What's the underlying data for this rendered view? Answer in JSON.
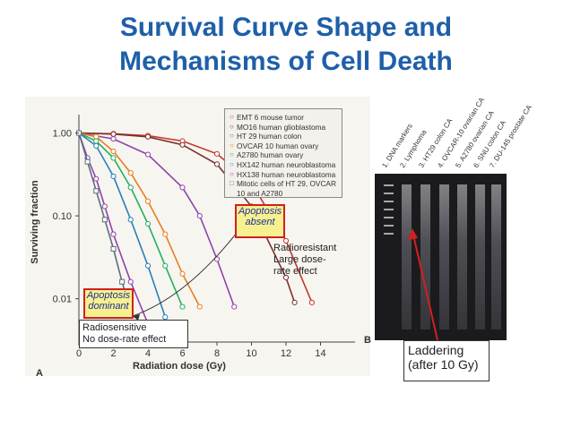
{
  "title_line1": "Survival Curve Shape and",
  "title_line2": "Mechanisms of Cell Death",
  "chart_data": {
    "type": "line",
    "xlabel": "Radiation dose (Gy)",
    "ylabel": "Surviving fraction",
    "xlim": [
      0,
      16
    ],
    "ylim": [
      0.003,
      1.3
    ],
    "yscale": "log",
    "x_ticks": [
      "0",
      "2",
      "4",
      "6",
      "8",
      "10",
      "12",
      "14"
    ],
    "x_tick_values": [
      0,
      2,
      4,
      6,
      8,
      10,
      12,
      14
    ],
    "y_ticks": [
      "1.00",
      "0.10",
      "0.01"
    ],
    "y_tick_values": [
      1,
      0.1,
      0.01
    ],
    "series": [
      {
        "name": "EMT 6 mouse tumor",
        "color": "#c0392b",
        "x": [
          0,
          2,
          4,
          6,
          8,
          10,
          12,
          13.5
        ],
        "y": [
          1,
          0.98,
          0.93,
          0.8,
          0.56,
          0.25,
          0.05,
          0.009
        ]
      },
      {
        "name": "MO16 human glioblastoma",
        "color": "#7a2f2f",
        "x": [
          0,
          2,
          4,
          6,
          8,
          10,
          12,
          12.5
        ],
        "y": [
          1,
          0.97,
          0.9,
          0.72,
          0.42,
          0.13,
          0.018,
          0.009
        ]
      },
      {
        "name": "HT 29 human colon",
        "color": "#8e44ad",
        "x": [
          0,
          2,
          4,
          6,
          7,
          8,
          9
        ],
        "y": [
          1,
          0.85,
          0.55,
          0.22,
          0.1,
          0.03,
          0.008
        ]
      },
      {
        "name": "OVCAR 10 human ovary",
        "color": "#e67e22",
        "x": [
          0,
          1,
          2,
          3,
          4,
          5,
          6,
          7
        ],
        "y": [
          1,
          0.9,
          0.6,
          0.33,
          0.15,
          0.06,
          0.02,
          0.008
        ]
      },
      {
        "name": "A2780 human ovary",
        "color": "#27ae60",
        "x": [
          0,
          1,
          2,
          3,
          4,
          5,
          6
        ],
        "y": [
          1,
          0.8,
          0.5,
          0.22,
          0.08,
          0.025,
          0.008
        ]
      },
      {
        "name": "HX142 human neuroblastoma",
        "color": "#2980b9",
        "x": [
          0,
          1,
          2,
          3,
          4,
          5
        ],
        "y": [
          1,
          0.7,
          0.3,
          0.09,
          0.025,
          0.006
        ]
      },
      {
        "name": "HX138 human neuroblastoma",
        "color": "#8e44ad",
        "x": [
          0,
          0.5,
          1,
          1.5,
          2,
          3,
          4
        ],
        "y": [
          1,
          0.5,
          0.28,
          0.13,
          0.06,
          0.016,
          0.005
        ]
      },
      {
        "name": "Mitotic cells of HT 29, OVCAR 10 and A2780",
        "color": "#5d6d7e",
        "x": [
          0,
          0.5,
          1,
          1.5,
          2,
          2.5,
          3
        ],
        "y": [
          1,
          0.45,
          0.2,
          0.09,
          0.04,
          0.016,
          0.007
        ]
      }
    ],
    "annotations": {
      "apoptosis_absent": "Apoptosis\nabsent",
      "apoptosis_dominant": "Apoptosis\ndominant",
      "radioresistant": "Radioresistant\nLarge dose-\nrate effect",
      "radiosensitive": "Radiosensitive\nNo dose-rate effect"
    },
    "panel_a": "A",
    "panel_b": "B"
  },
  "legend": [
    {
      "marker": "○",
      "label": "EMT 6 mouse tumor"
    },
    {
      "marker": "○",
      "label": "MO16 human glioblastoma"
    },
    {
      "marker": "○",
      "label": "HT 29 human colon"
    },
    {
      "marker": "○",
      "label": "OVCAR 10 human ovary"
    },
    {
      "marker": "○",
      "label": "A2780 human ovary"
    },
    {
      "marker": "○",
      "label": "HX142 human neuroblastoma"
    },
    {
      "marker": "○",
      "label": "HX138 human neuroblastoma"
    },
    {
      "marker": "□",
      "label": "Mitotic cells of HT 29, OVCAR 10 and A2780"
    }
  ],
  "gel_lanes": [
    "1. DNA markers",
    "2. Lymphoma",
    "3. HT29 colon CA",
    "4. OVCAR-10 ovarian CA",
    "5. A2780 ovarian CA",
    "6. SNU colon CA",
    "7. DU-145 prostate CA"
  ],
  "laddering_label": "Laddering (after 10 Gy)",
  "colors": {
    "title": "#1f5fa8",
    "highlight": "#f6f08e",
    "highlight_border": "#d02020",
    "arrow": "#d02020"
  }
}
